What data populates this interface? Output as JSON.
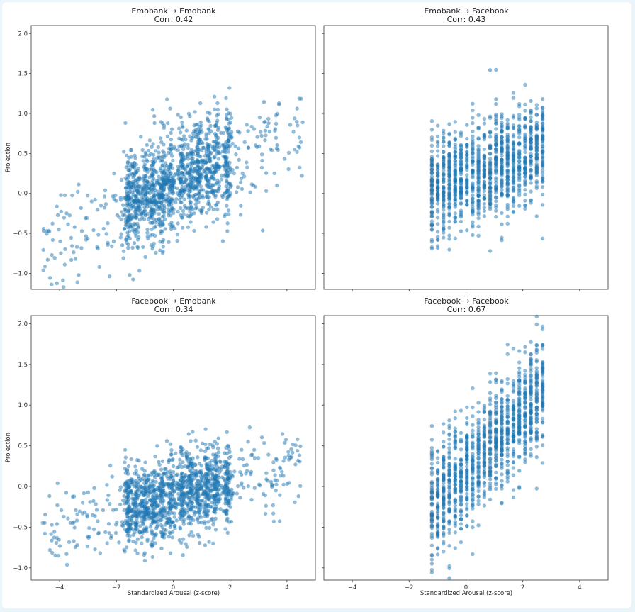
{
  "figure": {
    "xlabel": "Standardized Arousal (z-score)",
    "ylabel": "Projection",
    "point_color": "#1f77b4",
    "point_opacity": 0.5
  },
  "chart_data": [
    {
      "type": "scatter",
      "id": "emobank-emobank",
      "title": "Emobank → Emobank",
      "subtitle": "Corr: 0.42",
      "xlabel": "",
      "ylabel": "Projection",
      "xlim": [
        -5.0,
        5.0
      ],
      "ylim": [
        -1.2,
        2.1
      ],
      "xticks": [],
      "yticks": [
        -1.0,
        -0.5,
        0.0,
        0.5,
        1.0,
        1.5,
        2.0
      ],
      "ytick_labels": [
        "−1.0",
        "−0.5",
        "0.0",
        "0.5",
        "1.0",
        "1.5",
        "2.0"
      ],
      "grid": false,
      "x_range": [
        -4.8,
        4.8
      ],
      "correlation": 0.42
    },
    {
      "type": "scatter",
      "id": "emobank-facebook",
      "title": "Emobank → Facebook",
      "subtitle": "Corr: 0.43",
      "xlabel": "",
      "ylabel": "",
      "xlim": [
        -5.0,
        5.0
      ],
      "ylim": [
        -1.2,
        2.1
      ],
      "xticks": [],
      "yticks": [],
      "grid": false,
      "x_range": [
        -1.25,
        2.85
      ],
      "correlation": 0.43
    },
    {
      "type": "scatter",
      "id": "facebook-emobank",
      "title": "Facebook → Emobank",
      "subtitle": "Corr: 0.34",
      "xlabel": "Standardized Arousal (z-score)",
      "ylabel": "Projection",
      "xlim": [
        -5.0,
        5.0
      ],
      "ylim": [
        -1.15,
        2.1
      ],
      "xticks": [
        -4,
        -2,
        0,
        2,
        4
      ],
      "xtick_labels": [
        "−4",
        "−2",
        "0",
        "2",
        "4"
      ],
      "yticks": [
        -1.0,
        -0.5,
        0.0,
        0.5,
        1.0,
        1.5,
        2.0
      ],
      "ytick_labels": [
        "−1.0",
        "−0.5",
        "0.0",
        "0.5",
        "1.0",
        "1.5",
        "2.0"
      ],
      "grid": false,
      "x_range": [
        -4.8,
        4.8
      ],
      "correlation": 0.34
    },
    {
      "type": "scatter",
      "id": "facebook-facebook",
      "title": "Facebook → Facebook",
      "subtitle": "Corr: 0.67",
      "xlabel": "Standardized Arousal (z-score)",
      "ylabel": "",
      "xlim": [
        -5.0,
        5.0
      ],
      "ylim": [
        -1.15,
        2.1
      ],
      "xticks": [
        -4,
        -2,
        0,
        2,
        4
      ],
      "xtick_labels": [
        "−4",
        "−2",
        "0",
        "2",
        "4"
      ],
      "yticks": [],
      "grid": false,
      "x_range": [
        -1.25,
        2.85
      ],
      "correlation": 0.67
    }
  ]
}
